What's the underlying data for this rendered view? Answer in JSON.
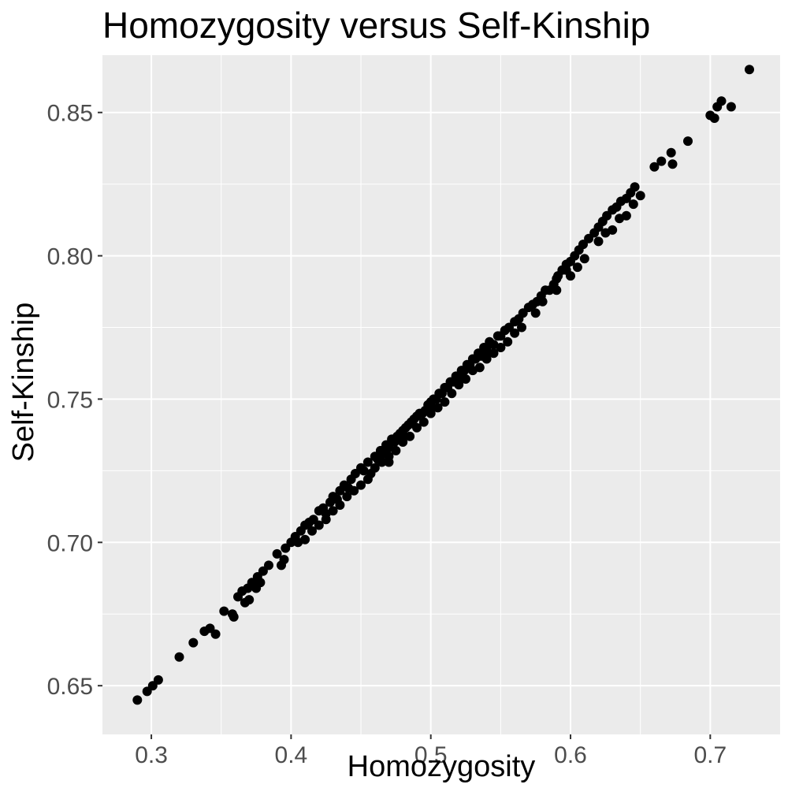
{
  "chart_data": {
    "type": "scatter",
    "title": "Homozygosity versus Self-Kinship",
    "xlabel": "Homozygosity",
    "ylabel": "Self-Kinship",
    "xlim": [
      0.265,
      0.75
    ],
    "ylim": [
      0.633,
      0.87
    ],
    "x_ticks": [
      0.3,
      0.4,
      0.5,
      0.6,
      0.7
    ],
    "x_tick_labels": [
      "0.3",
      "0.4",
      "0.5",
      "0.6",
      "0.7"
    ],
    "y_ticks": [
      0.65,
      0.7,
      0.75,
      0.8,
      0.85
    ],
    "y_tick_labels": [
      "0.65",
      "0.70",
      "0.75",
      "0.80",
      "0.85"
    ],
    "grid": true,
    "background": "#ebebeb",
    "grid_color": "#ffffff",
    "point_color": "#000000",
    "points": [
      [
        0.29,
        0.645
      ],
      [
        0.297,
        0.648
      ],
      [
        0.301,
        0.65
      ],
      [
        0.305,
        0.652
      ],
      [
        0.32,
        0.66
      ],
      [
        0.33,
        0.665
      ],
      [
        0.338,
        0.669
      ],
      [
        0.342,
        0.67
      ],
      [
        0.346,
        0.668
      ],
      [
        0.352,
        0.676
      ],
      [
        0.358,
        0.675
      ],
      [
        0.359,
        0.674
      ],
      [
        0.362,
        0.681
      ],
      [
        0.365,
        0.683
      ],
      [
        0.367,
        0.679
      ],
      [
        0.369,
        0.684
      ],
      [
        0.372,
        0.686
      ],
      [
        0.376,
        0.688
      ],
      [
        0.378,
        0.686
      ],
      [
        0.38,
        0.69
      ],
      [
        0.384,
        0.692
      ],
      [
        0.39,
        0.696
      ],
      [
        0.393,
        0.692
      ],
      [
        0.396,
        0.698
      ],
      [
        0.4,
        0.7
      ],
      [
        0.403,
        0.702
      ],
      [
        0.407,
        0.704
      ],
      [
        0.41,
        0.706
      ],
      [
        0.413,
        0.707
      ],
      [
        0.416,
        0.708
      ],
      [
        0.42,
        0.711
      ],
      [
        0.423,
        0.712
      ],
      [
        0.425,
        0.71
      ],
      [
        0.428,
        0.714
      ],
      [
        0.43,
        0.716
      ],
      [
        0.433,
        0.715
      ],
      [
        0.435,
        0.718
      ],
      [
        0.438,
        0.72
      ],
      [
        0.441,
        0.719
      ],
      [
        0.443,
        0.722
      ],
      [
        0.446,
        0.724
      ],
      [
        0.45,
        0.726
      ],
      [
        0.452,
        0.725
      ],
      [
        0.455,
        0.728
      ],
      [
        0.457,
        0.724
      ],
      [
        0.46,
        0.73
      ],
      [
        0.462,
        0.729
      ],
      [
        0.464,
        0.732
      ],
      [
        0.466,
        0.731
      ],
      [
        0.468,
        0.734
      ],
      [
        0.47,
        0.733
      ],
      [
        0.472,
        0.736
      ],
      [
        0.474,
        0.735
      ],
      [
        0.476,
        0.737
      ],
      [
        0.478,
        0.738
      ],
      [
        0.48,
        0.739
      ],
      [
        0.482,
        0.74
      ],
      [
        0.484,
        0.741
      ],
      [
        0.486,
        0.742
      ],
      [
        0.488,
        0.743
      ],
      [
        0.49,
        0.744
      ],
      [
        0.492,
        0.745
      ],
      [
        0.494,
        0.745
      ],
      [
        0.496,
        0.746
      ],
      [
        0.498,
        0.748
      ],
      [
        0.5,
        0.749
      ],
      [
        0.502,
        0.75
      ],
      [
        0.504,
        0.75
      ],
      [
        0.506,
        0.752
      ],
      [
        0.508,
        0.752
      ],
      [
        0.51,
        0.754
      ],
      [
        0.512,
        0.754
      ],
      [
        0.514,
        0.756
      ],
      [
        0.516,
        0.756
      ],
      [
        0.518,
        0.758
      ],
      [
        0.52,
        0.758
      ],
      [
        0.522,
        0.76
      ],
      [
        0.524,
        0.76
      ],
      [
        0.526,
        0.762
      ],
      [
        0.528,
        0.762
      ],
      [
        0.53,
        0.764
      ],
      [
        0.532,
        0.764
      ],
      [
        0.534,
        0.766
      ],
      [
        0.536,
        0.765
      ],
      [
        0.538,
        0.768
      ],
      [
        0.54,
        0.768
      ],
      [
        0.542,
        0.77
      ],
      [
        0.545,
        0.769
      ],
      [
        0.548,
        0.772
      ],
      [
        0.55,
        0.772
      ],
      [
        0.553,
        0.774
      ],
      [
        0.556,
        0.775
      ],
      [
        0.56,
        0.777
      ],
      [
        0.563,
        0.778
      ],
      [
        0.566,
        0.78
      ],
      [
        0.57,
        0.782
      ],
      [
        0.573,
        0.783
      ],
      [
        0.576,
        0.784
      ],
      [
        0.579,
        0.786
      ],
      [
        0.582,
        0.788
      ],
      [
        0.585,
        0.788
      ],
      [
        0.588,
        0.79
      ],
      [
        0.591,
        0.793
      ],
      [
        0.594,
        0.795
      ],
      [
        0.597,
        0.797
      ],
      [
        0.6,
        0.798
      ],
      [
        0.603,
        0.8
      ],
      [
        0.606,
        0.802
      ],
      [
        0.609,
        0.804
      ],
      [
        0.613,
        0.806
      ],
      [
        0.617,
        0.808
      ],
      [
        0.62,
        0.81
      ],
      [
        0.623,
        0.812
      ],
      [
        0.626,
        0.814
      ],
      [
        0.63,
        0.816
      ],
      [
        0.633,
        0.817
      ],
      [
        0.636,
        0.819
      ],
      [
        0.64,
        0.82
      ],
      [
        0.643,
        0.822
      ],
      [
        0.646,
        0.824
      ],
      [
        0.65,
        0.821
      ],
      [
        0.66,
        0.831
      ],
      [
        0.665,
        0.833
      ],
      [
        0.672,
        0.836
      ],
      [
        0.673,
        0.832
      ],
      [
        0.684,
        0.84
      ],
      [
        0.7,
        0.849
      ],
      [
        0.703,
        0.848
      ],
      [
        0.705,
        0.852
      ],
      [
        0.708,
        0.854
      ],
      [
        0.715,
        0.852
      ],
      [
        0.728,
        0.865
      ],
      [
        0.54,
        0.764
      ],
      [
        0.535,
        0.761
      ],
      [
        0.525,
        0.757
      ],
      [
        0.515,
        0.752
      ],
      [
        0.505,
        0.747
      ],
      [
        0.495,
        0.742
      ],
      [
        0.485,
        0.737
      ],
      [
        0.475,
        0.732
      ],
      [
        0.465,
        0.728
      ],
      [
        0.455,
        0.722
      ],
      [
        0.445,
        0.718
      ],
      [
        0.435,
        0.713
      ],
      [
        0.425,
        0.708
      ],
      [
        0.415,
        0.704
      ],
      [
        0.395,
        0.694
      ],
      [
        0.375,
        0.684
      ],
      [
        0.555,
        0.77
      ],
      [
        0.565,
        0.775
      ],
      [
        0.575,
        0.78
      ],
      [
        0.59,
        0.788
      ],
      [
        0.6,
        0.793
      ],
      [
        0.61,
        0.799
      ],
      [
        0.62,
        0.805
      ],
      [
        0.63,
        0.809
      ],
      [
        0.64,
        0.814
      ],
      [
        0.59,
        0.792
      ],
      [
        0.545,
        0.766
      ],
      [
        0.53,
        0.76
      ],
      [
        0.52,
        0.755
      ],
      [
        0.51,
        0.749
      ],
      [
        0.5,
        0.745
      ],
      [
        0.49,
        0.74
      ],
      [
        0.48,
        0.735
      ],
      [
        0.47,
        0.73
      ],
      [
        0.46,
        0.726
      ],
      [
        0.45,
        0.72
      ],
      [
        0.44,
        0.716
      ],
      [
        0.43,
        0.711
      ],
      [
        0.42,
        0.706
      ],
      [
        0.41,
        0.701
      ],
      [
        0.405,
        0.7
      ],
      [
        0.37,
        0.68
      ],
      [
        0.58,
        0.784
      ],
      [
        0.605,
        0.796
      ],
      [
        0.625,
        0.808
      ],
      [
        0.635,
        0.813
      ],
      [
        0.645,
        0.818
      ],
      [
        0.56,
        0.773
      ],
      [
        0.55,
        0.768
      ],
      [
        0.47,
        0.728
      ],
      [
        0.48,
        0.737
      ],
      [
        0.5,
        0.747
      ],
      [
        0.52,
        0.757
      ],
      [
        0.54,
        0.766
      ],
      [
        0.597,
        0.795
      ]
    ]
  }
}
